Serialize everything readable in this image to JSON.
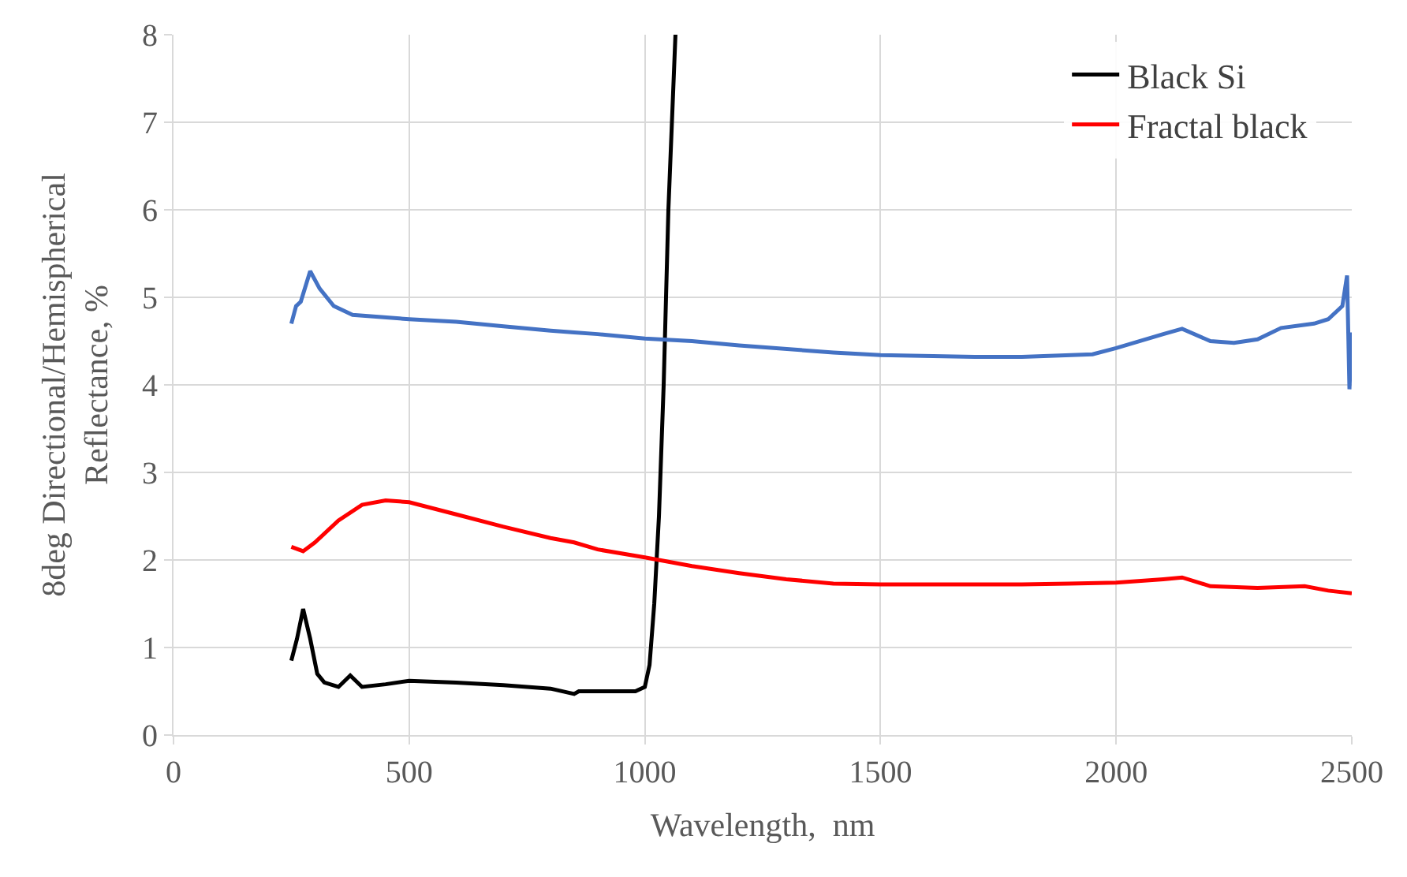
{
  "chart_data": {
    "type": "line",
    "xlabel": "Wavelength,  nm",
    "ylabel": "8deg Directional/Hemispherical\nReflectance, %",
    "xlim": [
      0,
      2500
    ],
    "ylim": [
      0,
      8
    ],
    "xticks": [
      0,
      500,
      1000,
      1500,
      2000,
      2500
    ],
    "yticks": [
      0,
      1,
      2,
      3,
      4,
      5,
      6,
      7,
      8
    ],
    "grid": true,
    "legend": "top right",
    "marker": "none",
    "line_style": "solid",
    "series": [
      {
        "name": "Black Si",
        "color": "#000000",
        "x": [
          250,
          262,
          275,
          290,
          305,
          320,
          350,
          375,
          400,
          450,
          500,
          600,
          700,
          800,
          850,
          860,
          900,
          980,
          1000,
          1010,
          1020,
          1030,
          1040,
          1050,
          1065
        ],
        "values": [
          0.85,
          1.1,
          1.44,
          1.1,
          0.7,
          0.6,
          0.55,
          0.68,
          0.55,
          0.58,
          0.62,
          0.6,
          0.57,
          0.53,
          0.47,
          0.5,
          0.5,
          0.5,
          0.55,
          0.8,
          1.5,
          2.5,
          4,
          6,
          8
        ]
      },
      {
        "name": "Fractal black",
        "color": "#ff0000",
        "x": [
          250,
          275,
          300,
          350,
          400,
          450,
          500,
          600,
          700,
          800,
          850,
          900,
          1000,
          1100,
          1200,
          1300,
          1400,
          1500,
          1700,
          1800,
          1900,
          2000,
          2100,
          2140,
          2200,
          2300,
          2400,
          2450,
          2500
        ],
        "values": [
          2.15,
          2.1,
          2.2,
          2.45,
          2.63,
          2.68,
          2.66,
          2.52,
          2.38,
          2.25,
          2.2,
          2.12,
          2.03,
          1.93,
          1.85,
          1.78,
          1.73,
          1.72,
          1.72,
          1.72,
          1.73,
          1.74,
          1.78,
          1.8,
          1.7,
          1.68,
          1.7,
          1.65,
          1.62
        ]
      },
      {
        "color": "#4472c4",
        "x": [
          250,
          260,
          270,
          290,
          310,
          340,
          380,
          500,
          600,
          700,
          800,
          850,
          900,
          1000,
          1100,
          1200,
          1400,
          1500,
          1700,
          1800,
          1950,
          2000,
          2100,
          2140,
          2200,
          2250,
          2300,
          2350,
          2420,
          2450,
          2480,
          2490,
          2495,
          2500
        ],
        "values": [
          4.7,
          4.9,
          4.95,
          5.3,
          5.1,
          4.9,
          4.8,
          4.75,
          4.72,
          4.67,
          4.62,
          4.6,
          4.58,
          4.53,
          4.5,
          4.45,
          4.37,
          4.34,
          4.32,
          4.32,
          4.35,
          4.42,
          4.58,
          4.64,
          4.5,
          4.48,
          4.52,
          4.65,
          4.7,
          4.75,
          4.9,
          5.25,
          3.95,
          4.6
        ]
      }
    ]
  }
}
